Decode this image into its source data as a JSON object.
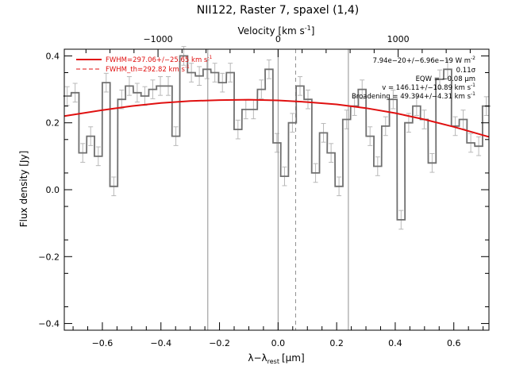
{
  "colors": {
    "fit": "#e01010",
    "data": "#707070",
    "err": "#b8b8b8",
    "vline": "#909090",
    "axis": "#000000"
  },
  "chart_data": {
    "type": "line",
    "title": "NII122, Raster 7, spaxel (1,4)",
    "xlabel": "λ−λ",
    "xlabel_sub": "rest",
    "xlabel_unit": "[μm]",
    "ylabel": "Flux density [Jy]",
    "top_axis_label": "Velocity [km s",
    "top_axis_label_sup": "-1",
    "top_axis_label_end": "]",
    "xlim": [
      -0.73,
      0.72
    ],
    "ylim": [
      -0.42,
      0.42
    ],
    "x_ticks": [
      -0.6,
      -0.4,
      -0.2,
      0.0,
      0.2,
      0.4,
      0.6
    ],
    "x_tick_labels": [
      "−0.6",
      "−0.4",
      "−0.2",
      "0.0",
      "0.2",
      "0.4",
      "0.6"
    ],
    "y_ticks": [
      -0.4,
      -0.2,
      0.0,
      0.2,
      0.4
    ],
    "y_tick_labels": [
      "−0.4",
      "−0.2",
      "0.0",
      "0.2",
      "0.4"
    ],
    "top_ticks_dx": [
      -0.41,
      0.0,
      0.41
    ],
    "top_tick_labels": [
      "−1000",
      "0",
      "1000"
    ],
    "vertical_lines": [
      {
        "x": -0.24,
        "style": "solid"
      },
      {
        "x": 0.0,
        "style": "solid"
      },
      {
        "x": 0.24,
        "style": "solid"
      },
      {
        "x": 0.06,
        "style": "dashed"
      }
    ],
    "series": [
      {
        "name": "data",
        "kind": "step",
        "bin_width": 0.0265,
        "x": [
          -0.72,
          -0.693,
          -0.667,
          -0.64,
          -0.614,
          -0.587,
          -0.561,
          -0.534,
          -0.508,
          -0.481,
          -0.455,
          -0.428,
          -0.402,
          -0.375,
          -0.349,
          -0.322,
          -0.296,
          -0.269,
          -0.243,
          -0.216,
          -0.19,
          -0.163,
          -0.137,
          -0.11,
          -0.084,
          -0.057,
          -0.031,
          -0.004,
          0.022,
          0.049,
          0.075,
          0.102,
          0.128,
          0.155,
          0.181,
          0.208,
          0.234,
          0.261,
          0.287,
          0.314,
          0.34,
          0.367,
          0.393,
          0.42,
          0.446,
          0.473,
          0.499,
          0.526,
          0.552,
          0.579,
          0.605,
          0.632,
          0.658,
          0.685,
          0.711
        ],
        "y": [
          0.28,
          0.29,
          0.11,
          0.16,
          0.1,
          0.32,
          0.01,
          0.27,
          0.31,
          0.29,
          0.28,
          0.3,
          0.31,
          0.31,
          0.16,
          0.4,
          0.35,
          0.34,
          0.36,
          0.35,
          0.32,
          0.35,
          0.18,
          0.24,
          0.24,
          0.3,
          0.36,
          0.14,
          0.04,
          0.2,
          0.31,
          0.27,
          0.05,
          0.17,
          0.11,
          0.01,
          0.21,
          0.25,
          0.3,
          0.16,
          0.07,
          0.19,
          0.27,
          -0.09,
          0.2,
          0.25,
          0.21,
          0.08,
          0.33,
          0.36,
          0.19,
          0.21,
          0.14,
          0.13,
          0.25
        ],
        "err": 0.028
      },
      {
        "name": "FWHM=297.06+/−25.65 km s",
        "kind": "fit",
        "x": [
          -0.73,
          -0.6,
          -0.5,
          -0.4,
          -0.3,
          -0.2,
          -0.1,
          0.0,
          0.1,
          0.2,
          0.3,
          0.4,
          0.5,
          0.6,
          0.72
        ],
        "y": [
          0.22,
          0.238,
          0.25,
          0.259,
          0.265,
          0.268,
          0.269,
          0.267,
          0.262,
          0.255,
          0.244,
          0.229,
          0.21,
          0.188,
          0.158
        ]
      }
    ],
    "legend": [
      {
        "label": "FWHM=297.06+/−25.65 km s",
        "sup": "-1",
        "style": "solid"
      },
      {
        "label": "FWHM_th=292.82 km s",
        "sup": "-1",
        "style": "dashed"
      }
    ],
    "annotations": [
      {
        "text": "7.94e−20+/−6.96e−19 W m",
        "sup": "-2"
      },
      {
        "text": "0.11σ",
        "sup": ""
      },
      {
        "text": "EQW = −0.08 μm",
        "sup": ""
      },
      {
        "text": "v = 146.11+/−10.89 km s",
        "sup": "-1"
      },
      {
        "text": "Broadening = 49.394+/−4.31 km s",
        "sup": "-1"
      }
    ]
  }
}
